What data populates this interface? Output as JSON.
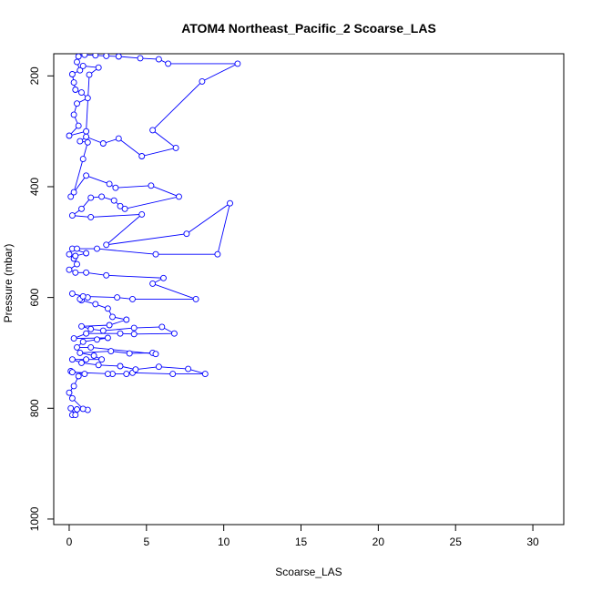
{
  "chart_data": {
    "type": "line",
    "title": "ATOM4 Northeast_Pacific_2 Scoarse_LAS",
    "xlabel": "Scoarse_LAS",
    "ylabel": "Pressure (mbar)",
    "xlim": [
      -1,
      32
    ],
    "ylim": [
      1010,
      160
    ],
    "y_inverted": true,
    "x_ticks": [
      0,
      5,
      10,
      15,
      20,
      25,
      30
    ],
    "y_ticks": [
      200,
      400,
      600,
      800,
      1000
    ],
    "grid": false,
    "legend": "none",
    "series_color": "#0000FF",
    "marker": "open-circle",
    "points": [
      [
        0.2,
        812
      ],
      [
        0.4,
        812
      ],
      [
        0.1,
        800
      ],
      [
        0.5,
        802
      ],
      [
        1.2,
        803
      ],
      [
        0.9,
        801
      ],
      [
        0.2,
        782
      ],
      [
        0.0,
        772
      ],
      [
        0.3,
        760
      ],
      [
        0.6,
        742
      ],
      [
        1.0,
        738
      ],
      [
        0.1,
        733
      ],
      [
        0.2,
        735
      ],
      [
        2.8,
        738
      ],
      [
        2.5,
        738
      ],
      [
        3.7,
        738
      ],
      [
        4.1,
        736
      ],
      [
        6.7,
        738
      ],
      [
        8.8,
        738
      ],
      [
        7.7,
        729
      ],
      [
        5.8,
        725
      ],
      [
        4.3,
        730
      ],
      [
        3.3,
        724
      ],
      [
        1.9,
        722
      ],
      [
        0.8,
        718
      ],
      [
        0.2,
        712
      ],
      [
        1.1,
        712
      ],
      [
        2.1,
        712
      ],
      [
        1.6,
        705
      ],
      [
        0.7,
        700
      ],
      [
        2.7,
        697
      ],
      [
        3.9,
        701
      ],
      [
        5.4,
        700
      ],
      [
        5.6,
        702
      ],
      [
        1.4,
        690
      ],
      [
        0.5,
        690
      ],
      [
        0.9,
        680
      ],
      [
        1.8,
        676
      ],
      [
        2.5,
        673
      ],
      [
        0.3,
        674
      ],
      [
        1.1,
        665
      ],
      [
        3.3,
        665
      ],
      [
        4.2,
        666
      ],
      [
        6.8,
        665
      ],
      [
        6.0,
        653
      ],
      [
        4.2,
        655
      ],
      [
        2.2,
        660
      ],
      [
        1.4,
        657
      ],
      [
        0.8,
        652
      ],
      [
        2.6,
        650
      ],
      [
        3.7,
        640
      ],
      [
        2.8,
        635
      ],
      [
        2.5,
        620
      ],
      [
        1.7,
        612
      ],
      [
        0.8,
        605
      ],
      [
        0.7,
        603
      ],
      [
        1.2,
        600
      ],
      [
        0.2,
        593
      ],
      [
        0.9,
        598
      ],
      [
        3.1,
        600
      ],
      [
        4.1,
        603
      ],
      [
        8.2,
        603
      ],
      [
        5.4,
        575
      ],
      [
        6.1,
        565
      ],
      [
        2.4,
        560
      ],
      [
        1.1,
        555
      ],
      [
        0.4,
        555
      ],
      [
        0.0,
        550
      ],
      [
        0.5,
        540
      ],
      [
        0.3,
        530
      ],
      [
        0.0,
        522
      ],
      [
        0.4,
        525
      ],
      [
        1.1,
        520
      ],
      [
        0.2,
        512
      ],
      [
        0.5,
        512
      ],
      [
        1.8,
        512
      ],
      [
        5.6,
        522
      ],
      [
        9.6,
        522
      ],
      [
        10.4,
        430
      ],
      [
        7.6,
        485
      ],
      [
        2.4,
        505
      ],
      [
        4.7,
        450
      ],
      [
        1.4,
        455
      ],
      [
        0.2,
        452
      ],
      [
        0.8,
        440
      ],
      [
        1.4,
        420
      ],
      [
        2.1,
        418
      ],
      [
        2.9,
        425
      ],
      [
        3.3,
        435
      ],
      [
        3.6,
        440
      ],
      [
        7.1,
        418
      ],
      [
        5.3,
        398
      ],
      [
        3.0,
        402
      ],
      [
        2.6,
        395
      ],
      [
        1.1,
        380
      ],
      [
        0.1,
        418
      ],
      [
        0.3,
        410
      ],
      [
        0.9,
        350
      ],
      [
        1.2,
        320
      ],
      [
        0.7,
        318
      ],
      [
        1.1,
        310
      ],
      [
        2.2,
        322
      ],
      [
        3.2,
        313
      ],
      [
        4.7,
        345
      ],
      [
        6.9,
        330
      ],
      [
        5.4,
        298
      ],
      [
        8.6,
        210
      ],
      [
        10.9,
        178
      ],
      [
        6.4,
        178
      ],
      [
        5.8,
        170
      ],
      [
        4.6,
        168
      ],
      [
        3.2,
        165
      ],
      [
        2.4,
        164
      ],
      [
        1.7,
        163
      ],
      [
        1.0,
        162
      ],
      [
        0.6,
        165
      ],
      [
        0.5,
        175
      ],
      [
        0.7,
        190
      ],
      [
        0.2,
        197
      ],
      [
        0.3,
        212
      ],
      [
        0.4,
        225
      ],
      [
        0.8,
        230
      ],
      [
        1.2,
        240
      ],
      [
        0.5,
        250
      ],
      [
        0.3,
        270
      ],
      [
        0.6,
        290
      ],
      [
        0.0,
        308
      ],
      [
        1.1,
        300
      ],
      [
        1.3,
        198
      ],
      [
        1.9,
        185
      ],
      [
        0.9,
        182
      ]
    ]
  }
}
